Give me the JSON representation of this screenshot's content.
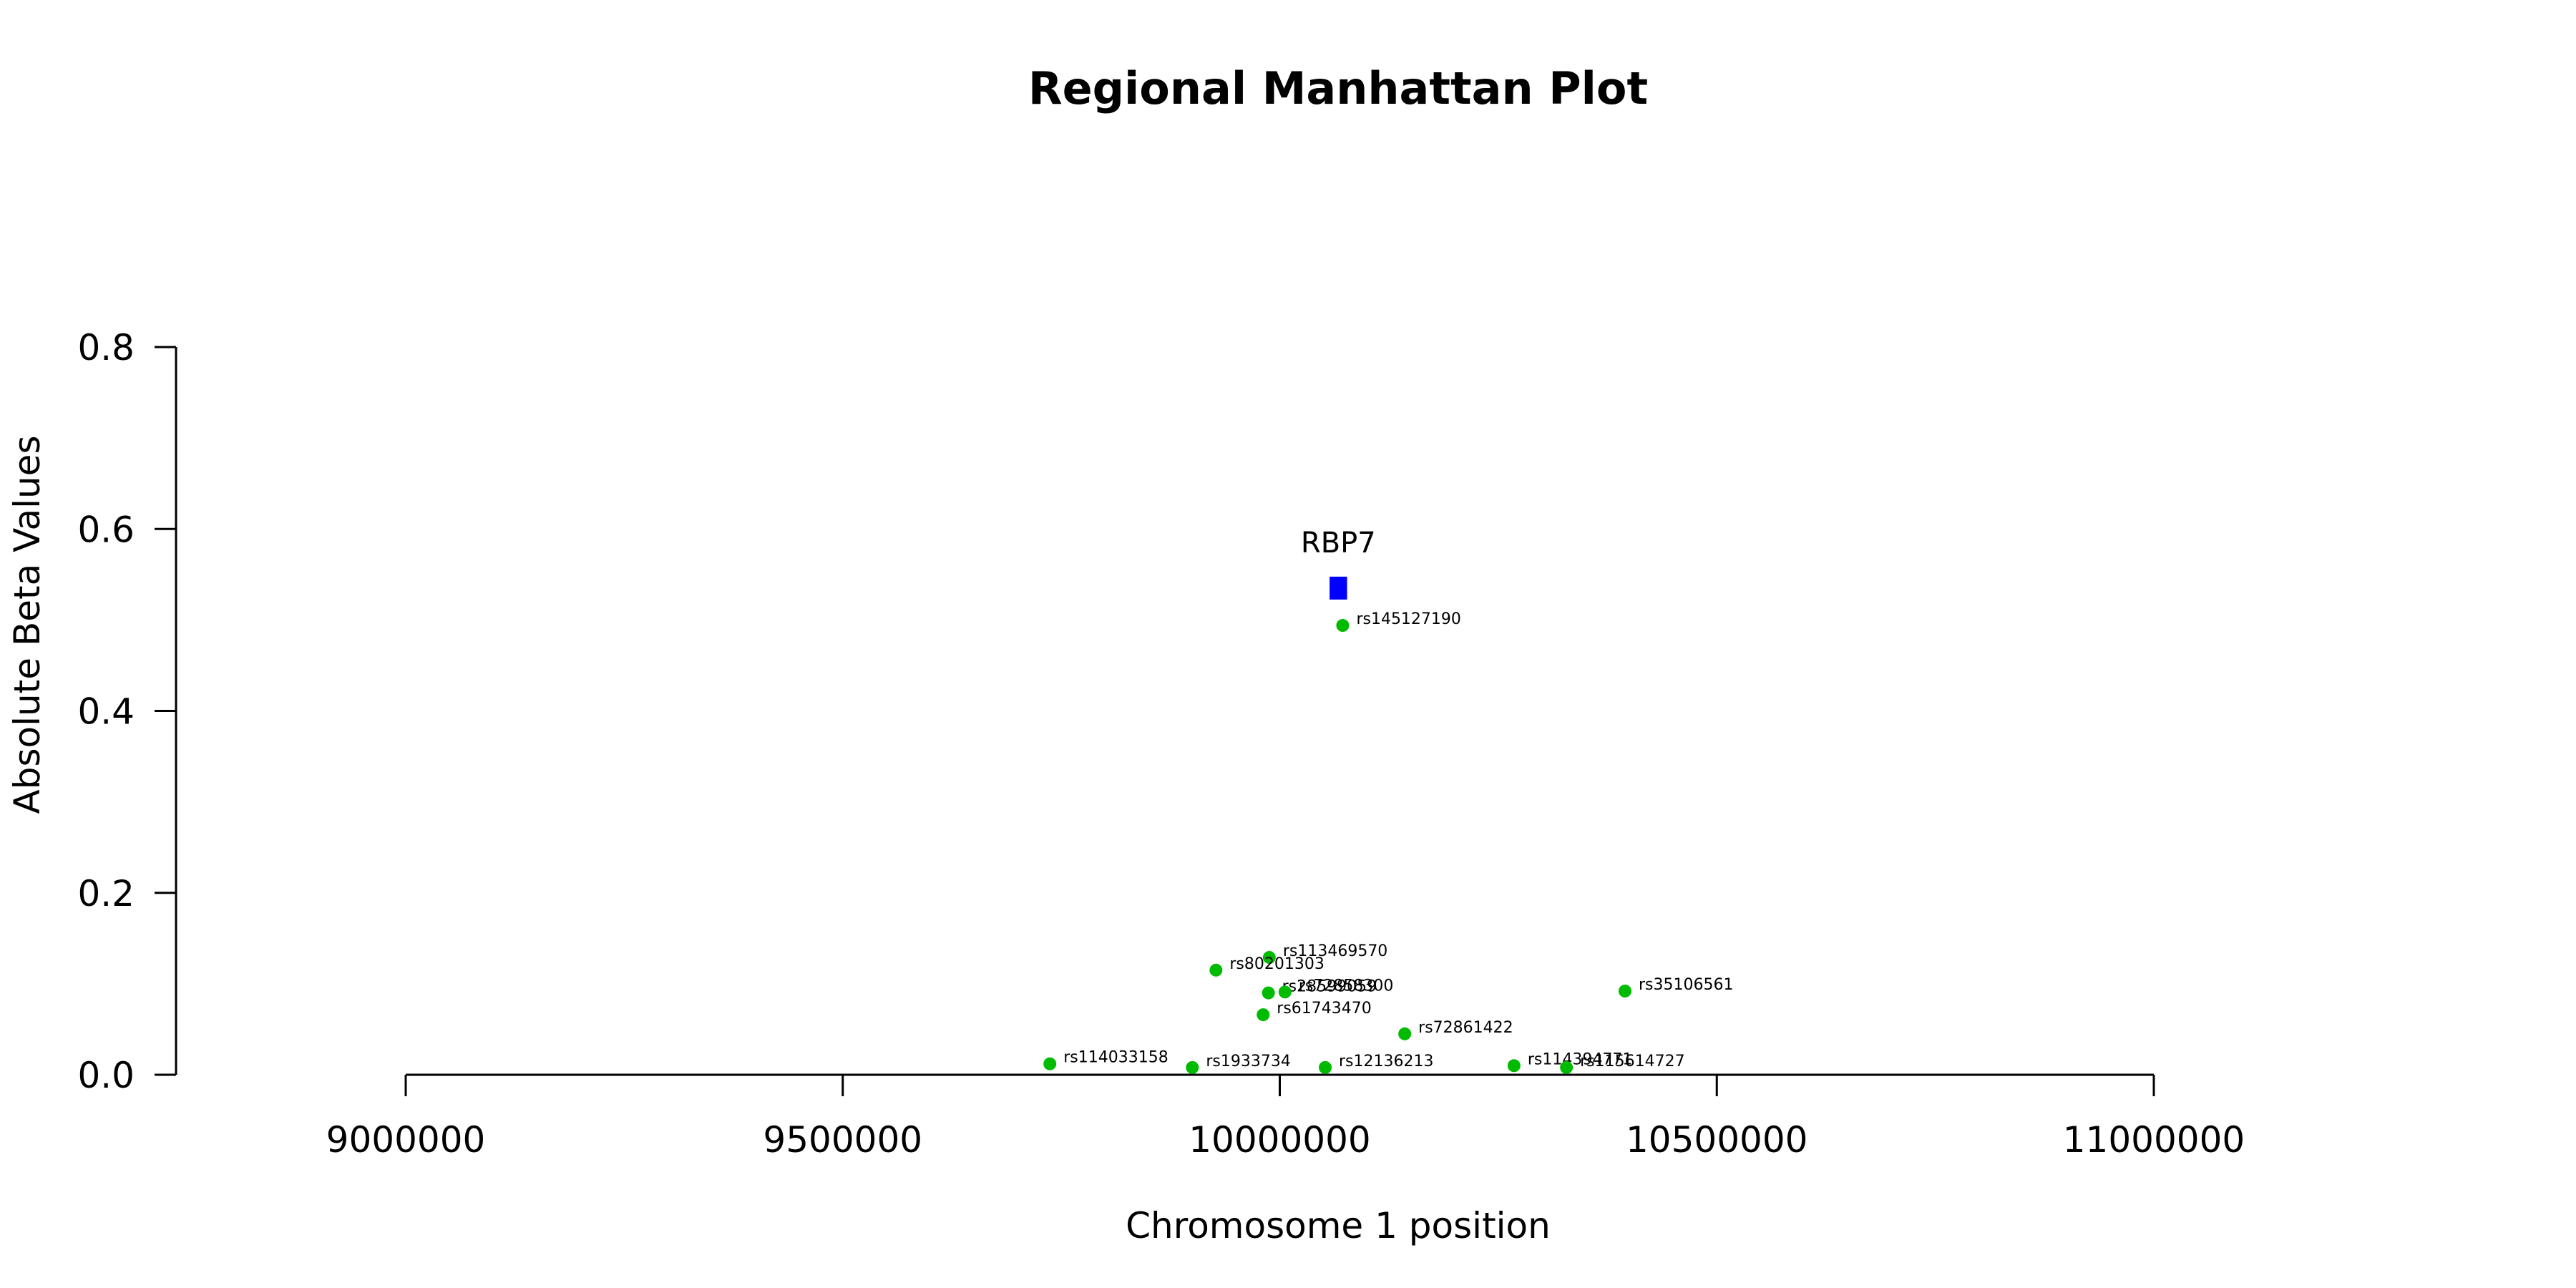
{
  "chart_data": {
    "type": "scatter",
    "title": "Regional Manhattan Plot",
    "xlabel": "Chromosome 1 position",
    "ylabel": "Absolute Beta Values",
    "xlim": [
      9000000,
      11000000
    ],
    "ylim": [
      0,
      0.8
    ],
    "x_ticks": [
      9000000,
      9500000,
      10000000,
      10500000,
      11000000
    ],
    "x_tick_labels": [
      "9000000",
      "9500000",
      "10000000",
      "10500000",
      "11000000"
    ],
    "y_ticks": [
      0.0,
      0.2,
      0.4,
      0.6,
      0.8
    ],
    "y_tick_labels": [
      "0.0",
      "0.2",
      "0.4",
      "0.6",
      "0.8"
    ],
    "grid": false,
    "legend": "none",
    "genes": [
      {
        "name": "RBP7",
        "start": 10057000,
        "end": 10077000,
        "value": 0.535,
        "color": "#0000ff"
      }
    ],
    "snp_color": "#00bb00",
    "points": [
      {
        "id": "rs145127190",
        "x": 10072000,
        "y": 0.494
      },
      {
        "id": "rs113469570",
        "x": 9988000,
        "y": 0.129
      },
      {
        "id": "rs80201303",
        "x": 9927000,
        "y": 0.115
      },
      {
        "id": "rs28599059",
        "x": 9987000,
        "y": 0.09
      },
      {
        "id": "rs72858300",
        "x": 10006000,
        "y": 0.091
      },
      {
        "id": "rs61743470",
        "x": 9981000,
        "y": 0.066
      },
      {
        "id": "rs35106561",
        "x": 10395000,
        "y": 0.092
      },
      {
        "id": "rs72861422",
        "x": 10143000,
        "y": 0.045
      },
      {
        "id": "rs114033158",
        "x": 9737000,
        "y": 0.012
      },
      {
        "id": "rs1933734",
        "x": 9900000,
        "y": 0.008
      },
      {
        "id": "rs12136213",
        "x": 10052000,
        "y": 0.008
      },
      {
        "id": "rs114394771",
        "x": 10268000,
        "y": 0.01
      },
      {
        "id": "rs115614727",
        "x": 10328000,
        "y": 0.008
      }
    ]
  }
}
